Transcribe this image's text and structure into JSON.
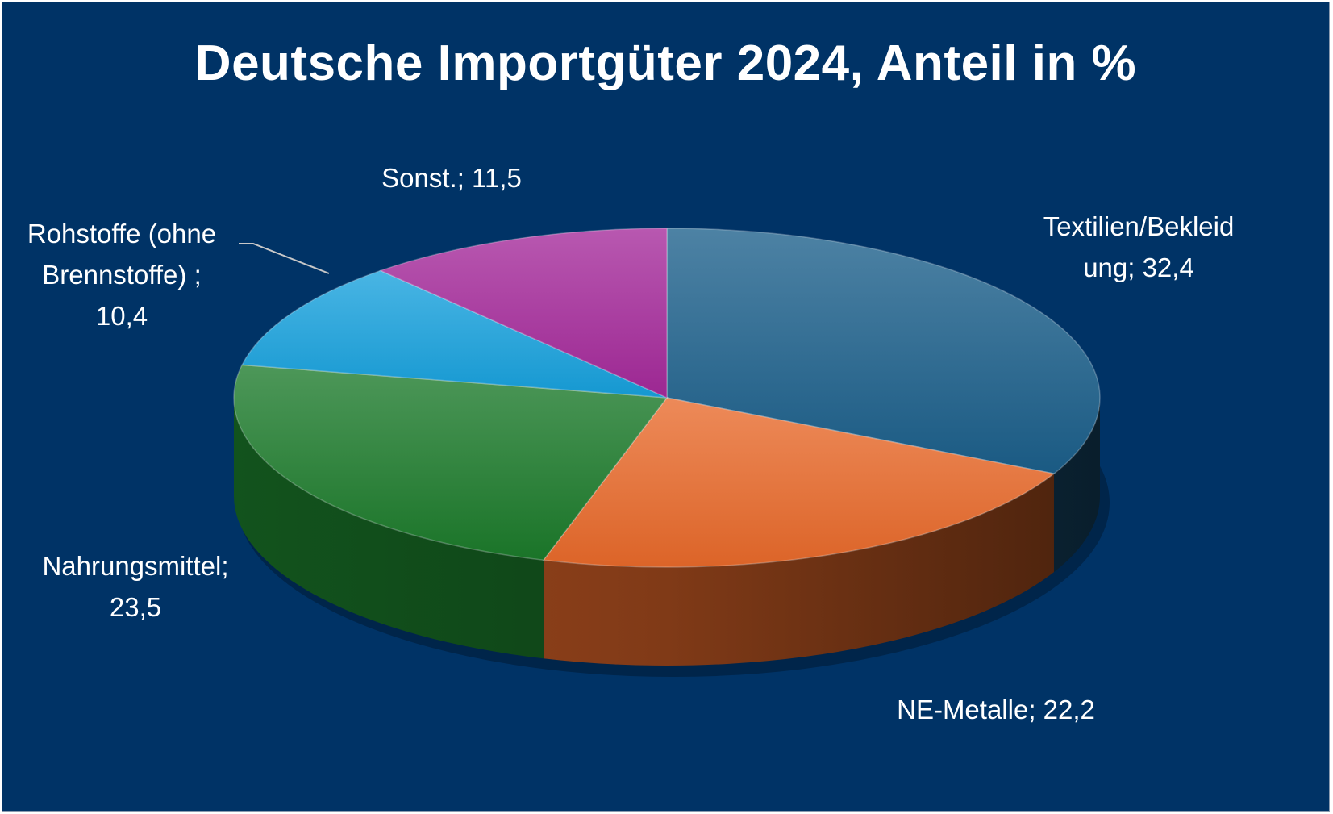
{
  "chart_data": {
    "type": "pie",
    "title": "Deutsche Importgüter 2024, Anteil in %",
    "slices": [
      {
        "label": "Textilien/Bekleidung",
        "value": 32.4,
        "label_lines": [
          "Textilien/Bekleid",
          "ung; 32,4"
        ],
        "color": "#1b5f8a"
      },
      {
        "label": "NE-Metalle",
        "value": 22.2,
        "label_lines": [
          "NE-Metalle; 22,2"
        ],
        "color": "#e8692a"
      },
      {
        "label": "Nahrungsmittel",
        "value": 23.5,
        "label_lines": [
          "Nahrungsmittel;",
          "23,5"
        ],
        "color": "#1b7a2a"
      },
      {
        "label": "Rohstoffe (ohne Brennstoffe)",
        "value": 10.4,
        "label_lines": [
          "Rohstoffe (ohne",
          "Brennstoffe) ;",
          "10,4"
        ],
        "color": "#16a0dc"
      },
      {
        "label": "Sonst.",
        "value": 11.5,
        "label_lines": [
          "Sonst.; 11,5"
        ],
        "color": "#a4299a"
      }
    ],
    "style": "3d-pie",
    "background": "#003366",
    "label_color": "#ffffff"
  }
}
